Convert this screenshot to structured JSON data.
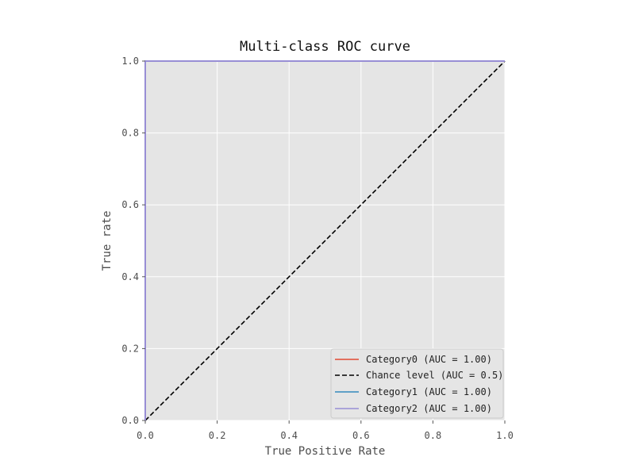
{
  "chart_data": {
    "type": "line",
    "title": "Multi-class ROC curve",
    "xlabel": "True Positive Rate",
    "ylabel": "True rate",
    "xlim": [
      0,
      1
    ],
    "ylim": [
      0,
      1
    ],
    "x_ticks": [
      "0.0",
      "0.2",
      "0.4",
      "0.6",
      "0.8",
      "1.0"
    ],
    "y_ticks": [
      "0.0",
      "0.2",
      "0.4",
      "0.6",
      "0.8",
      "1.0"
    ],
    "grid": true,
    "legend_position": "lower-right",
    "series": [
      {
        "name": "Category0 (AUC = 1.00)",
        "color": "#e24a33",
        "style": "solid",
        "x": [
          0,
          0,
          1
        ],
        "y": [
          0,
          1,
          1
        ]
      },
      {
        "name": "Chance level (AUC = 0.5)",
        "color": "#000000",
        "style": "dashed",
        "x": [
          0,
          1
        ],
        "y": [
          0,
          1
        ]
      },
      {
        "name": "Category1 (AUC = 1.00)",
        "color": "#348abd",
        "style": "solid",
        "x": [
          0,
          0,
          1
        ],
        "y": [
          0,
          1,
          1
        ]
      },
      {
        "name": "Category2 (AUC = 1.00)",
        "color": "#988ed5",
        "style": "solid",
        "x": [
          0,
          0,
          1
        ],
        "y": [
          0,
          1,
          1
        ]
      }
    ]
  }
}
